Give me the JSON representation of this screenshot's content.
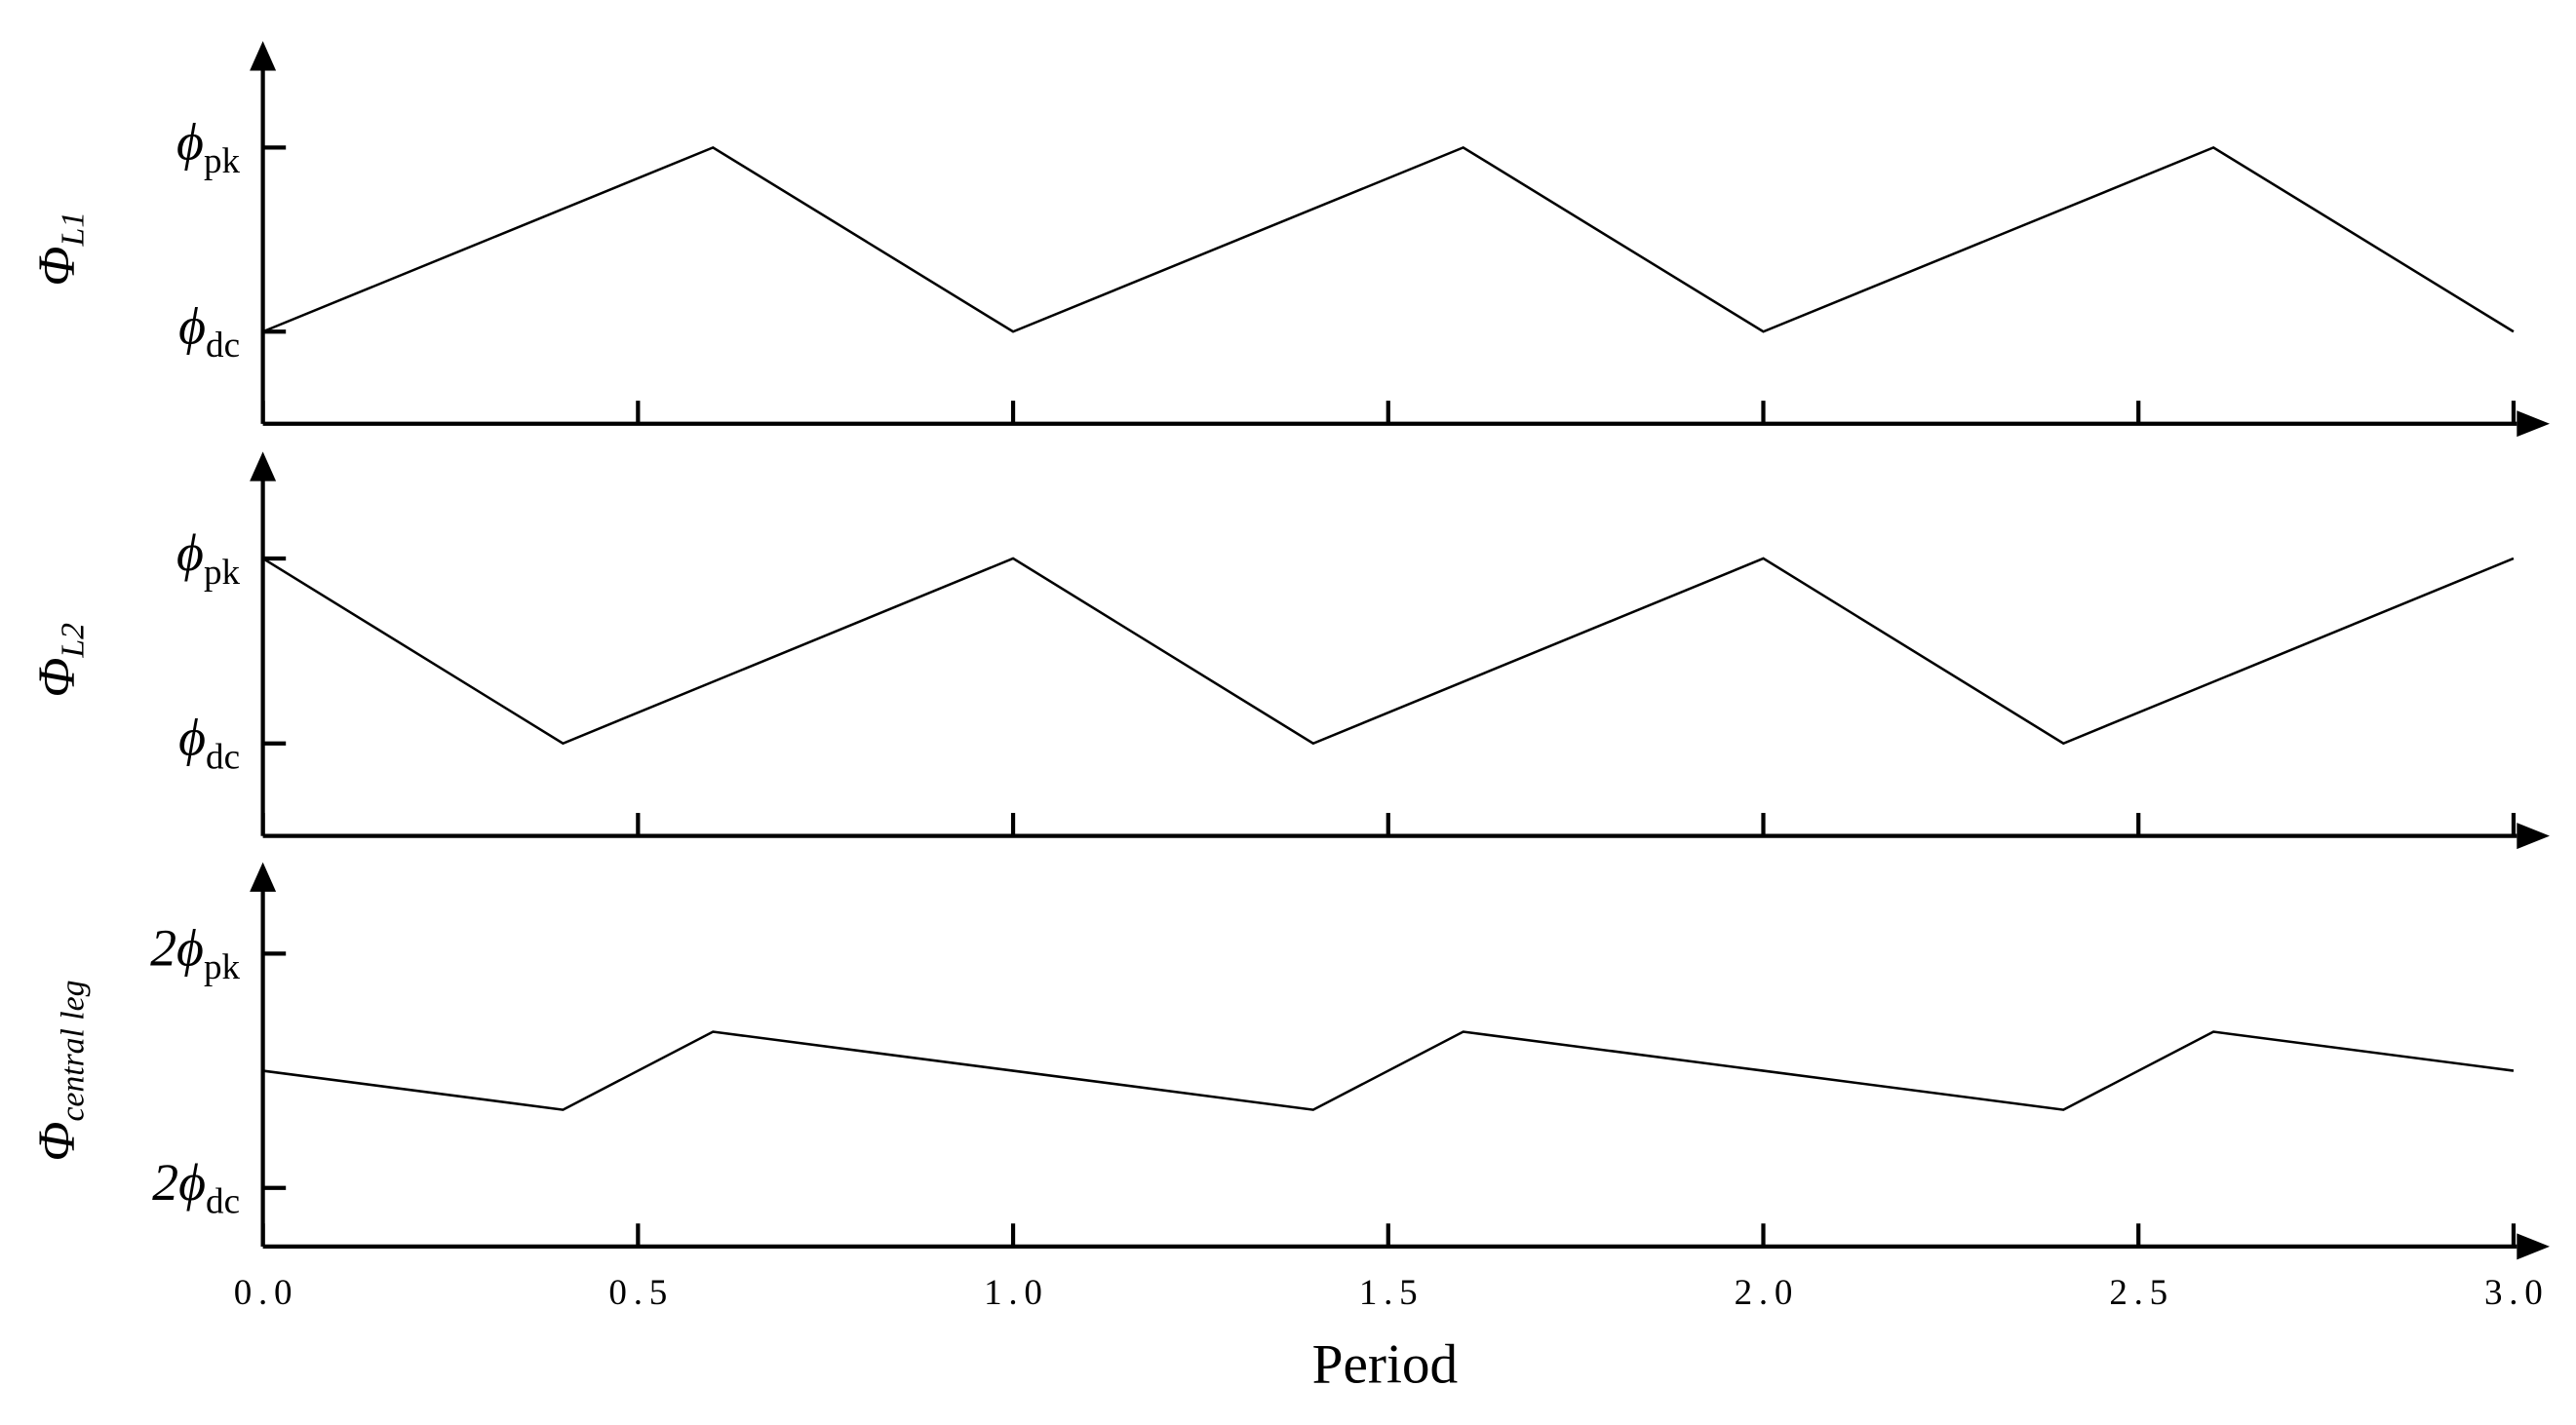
{
  "chart_data": [
    {
      "type": "line",
      "ylabel": "Φ",
      "ylabel_subscript": "L1",
      "x": [
        0,
        0.6,
        1,
        1.6,
        2,
        2.6,
        3
      ],
      "series": [
        {
          "color": "#000000",
          "values": [
            1,
            2,
            1,
            2,
            1,
            2,
            1
          ]
        }
      ],
      "xlim": [
        0,
        3
      ],
      "xticks": [
        0,
        0.5,
        1,
        1.5,
        2,
        2.5,
        3
      ],
      "ylim": [
        0.5,
        2.4
      ],
      "yticks": [
        {
          "value": 1,
          "label": "ϕ",
          "subscript": "dc"
        },
        {
          "value": 2,
          "label": "ϕ",
          "subscript": "pk"
        }
      ]
    },
    {
      "type": "line",
      "ylabel": "Φ",
      "ylabel_subscript": "L2",
      "x": [
        0,
        0.4,
        1,
        1.4,
        2,
        2.4,
        3
      ],
      "series": [
        {
          "color": "#000000",
          "values": [
            2,
            1,
            2,
            1,
            2,
            1,
            2
          ]
        }
      ],
      "xlim": [
        0,
        3
      ],
      "xticks": [
        0,
        0.5,
        1,
        1.5,
        2,
        2.5,
        3
      ],
      "ylim": [
        0.5,
        2.4
      ],
      "yticks": [
        {
          "value": 1,
          "label": "ϕ",
          "subscript": "dc"
        },
        {
          "value": 2,
          "label": "ϕ",
          "subscript": "pk"
        }
      ]
    },
    {
      "type": "line",
      "ylabel": "Φ",
      "ylabel_subscript": "central leg",
      "xlabel": "Period",
      "x": [
        0,
        0.4,
        0.6,
        1,
        1.4,
        1.6,
        2,
        2.4,
        2.6,
        3
      ],
      "series": [
        {
          "color": "#000000",
          "values": [
            3,
            2.667,
            3.333,
            3,
            2.667,
            3.333,
            3,
            2.667,
            3.333,
            3
          ]
        }
      ],
      "xlim": [
        0,
        3
      ],
      "xticks": [
        {
          "value": 0,
          "label": "0.0"
        },
        0.5,
        {
          "value": 1,
          "label": "1.0"
        },
        1.5,
        {
          "value": 2,
          "label": "2.0"
        },
        2.5,
        {
          "value": 3,
          "label": "3.0"
        }
      ],
      "ylim": [
        1.5,
        4.5
      ],
      "yticks": [
        {
          "value": 2,
          "label": "2ϕ",
          "subscript": "dc"
        },
        {
          "value": 4,
          "label": "2ϕ",
          "subscript": "pk"
        }
      ]
    }
  ]
}
